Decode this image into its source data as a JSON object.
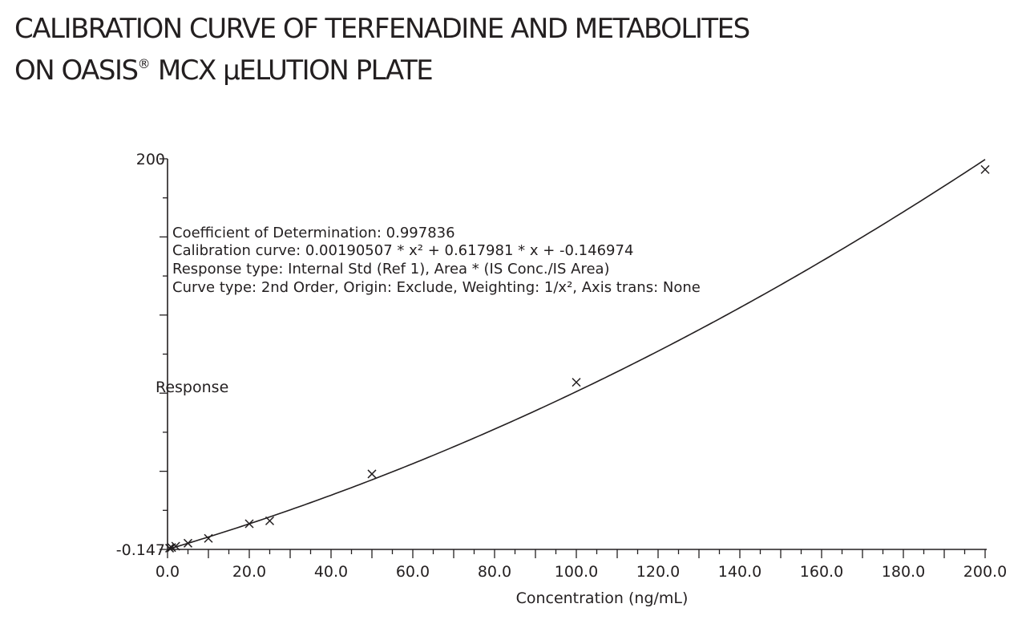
{
  "title": {
    "line1": "CALIBRATION CURVE OF TERFENADINE AND METABOLITES",
    "line2_a": "ON OASIS",
    "line2_sup": "®",
    "line2_b": " MCX μELUTION PLATE"
  },
  "chart_data": {
    "type": "scatter",
    "xlabel": "Concentration (ng/mL)",
    "ylabel": "Response",
    "xlim": [
      0,
      200
    ],
    "ylim": [
      -0.147,
      200
    ],
    "x_ticks": [
      "0.0",
      "20.0",
      "40.0",
      "60.0",
      "80.0",
      "100.0",
      "120.0",
      "140.0",
      "160.0",
      "180.0",
      "200.0"
    ],
    "y_ticks": [
      "-0.147",
      "200"
    ],
    "grid": false,
    "annotations": {
      "r2": "Coefficient of Determination: 0.997836",
      "curve": "Calibration curve: 0.00190507 * x² + 0.617981 * x + -0.146974",
      "response_type": "Response type: Internal Std (Ref 1), Area * (IS Conc./IS Area)",
      "curve_type": "Curve type: 2nd Order, Origin: Exclude, Weighting: 1/x², Axis trans: None"
    },
    "fit": {
      "a": 0.00190507,
      "b": 0.617981,
      "c": -0.146974
    },
    "points": [
      {
        "x": 0.5,
        "y": 0.5
      },
      {
        "x": 1,
        "y": 0.8
      },
      {
        "x": 2,
        "y": 1.5
      },
      {
        "x": 5,
        "y": 3
      },
      {
        "x": 10,
        "y": 5.5
      },
      {
        "x": 20,
        "y": 13
      },
      {
        "x": 25,
        "y": 14.5
      },
      {
        "x": 50,
        "y": 38.5
      },
      {
        "x": 100,
        "y": 85.5
      },
      {
        "x": 200,
        "y": 194.5
      }
    ]
  }
}
